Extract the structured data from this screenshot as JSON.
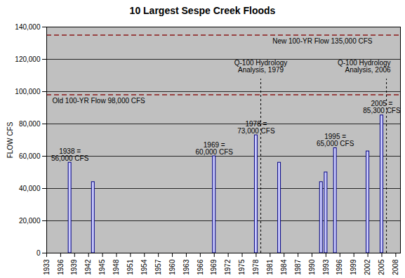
{
  "chart_data": {
    "type": "bar",
    "title": "10 Largest Sespe Creek Floods",
    "y_label": "FLOW CFS",
    "x": [
      1938,
      1943,
      1969,
      1978,
      1983,
      1992,
      1993,
      1995,
      2002,
      2005
    ],
    "values": [
      56000,
      44000,
      60000,
      73000,
      56000,
      44000,
      50000,
      65000,
      63000,
      85300
    ],
    "value_labels": [
      "1938 = 56,000 CFS",
      null,
      "1969 = 60,000 CFS",
      "1978 = 73,000 CFS",
      null,
      null,
      null,
      "1995 = 65,000 CFS",
      null,
      "2005 = 85,300 CFS"
    ],
    "data_labels": true,
    "color": "#ccccff",
    "xlim": [
      1933,
      2009
    ],
    "xticks": [
      1933,
      1936,
      1939,
      1942,
      1945,
      1948,
      1951,
      1954,
      1957,
      1960,
      1963,
      1966,
      1969,
      1972,
      1975,
      1978,
      1981,
      1984,
      1987,
      1990,
      1993,
      1996,
      1999,
      2002,
      2005,
      2008
    ],
    "ylim": [
      0,
      140000
    ],
    "yticks": [
      {
        "value": 0,
        "label": "0"
      },
      {
        "value": 20000,
        "label": "20,000"
      },
      {
        "value": 40000,
        "label": "40,000"
      },
      {
        "value": 60000,
        "label": "60,000"
      },
      {
        "value": 80000,
        "label": "80,000"
      },
      {
        "value": 100000,
        "label": "100,000"
      },
      {
        "value": 120000,
        "label": "120,000"
      },
      {
        "value": 140000,
        "label": "140,000"
      }
    ],
    "grid": true,
    "reference_lines": [
      {
        "value": 98000,
        "label": "Old 100-YR Flow 98,000 CFS"
      },
      {
        "value": 135000,
        "label": "New 100-YR Flow 135,000 CFS"
      }
    ],
    "vertical_lines": [
      {
        "value": 1979,
        "label": "Q-100 Hydrology Analysis, 1979"
      },
      {
        "value": 2006,
        "label": "Q-100 Hydrology Analysis, 2006"
      }
    ]
  }
}
